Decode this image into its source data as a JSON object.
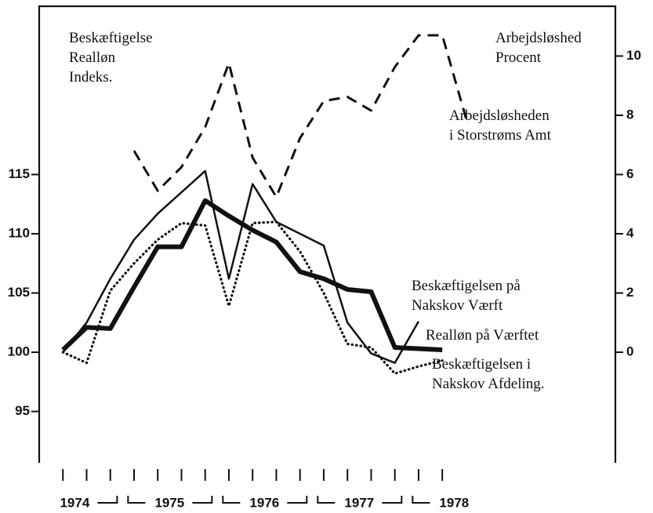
{
  "chart_data": {
    "type": "line",
    "y_label": [
      "Beskæftigelse",
      "Realløn",
      "Indeks."
    ],
    "y2_label": [
      "Arbejdsløshed",
      "Procent"
    ],
    "xlim": [
      1973.75,
      1979.825
    ],
    "xticks": [
      1974,
      1974.25,
      1974.5,
      1974.75,
      1975,
      1975.25,
      1975.5,
      1975.75,
      1976,
      1976.25,
      1976.5,
      1976.75,
      1977,
      1977.25,
      1977.5,
      1977.75,
      1978
    ],
    "year_labels": [
      1974,
      1975,
      1976,
      1977,
      1978
    ],
    "ylim": [
      90.8,
      129.2
    ],
    "yticks": [
      95,
      100,
      105,
      110,
      115
    ],
    "y2lim": [
      -3.68,
      11.68
    ],
    "y2ticks": [
      0,
      2,
      4,
      6,
      8,
      10
    ],
    "series": [
      {
        "name": [
          "Beskæftigelsen på",
          "Nakskov Værft"
        ],
        "color": "#111111",
        "style": "heavy",
        "x": [
          1974,
          1974.25,
          1974.5,
          1974.75,
          1975,
          1975.25,
          1975.5,
          1975.75,
          1976,
          1976.25,
          1976.5,
          1976.75,
          1977,
          1977.25,
          1977.5,
          1977.75,
          1978
        ],
        "values": [
          100.2,
          102.1,
          102.0,
          105.5,
          108.9,
          108.9,
          112.8,
          111.5,
          110.3,
          109.3,
          106.8,
          106.2,
          105.3,
          105.1,
          100.4,
          100.3,
          100.2
        ]
      },
      {
        "name": [
          "Realløn på Værftet"
        ],
        "color": "#111111",
        "style": "thin",
        "x": [
          1974,
          1974.25,
          1974.5,
          1974.75,
          1975,
          1975.25,
          1975.5,
          1975.75,
          1976,
          1976.25,
          1976.5,
          1976.75,
          1977,
          1977.25,
          1977.5,
          1977.75,
          1978
        ],
        "values": [
          100.0,
          102.5,
          106.2,
          109.5,
          111.7,
          113.5,
          115.3,
          106.2,
          114.2,
          111.0,
          110.0,
          109.0,
          102.5,
          99.9,
          99.1,
          102.6,
          null
        ]
      },
      {
        "name": [
          "Beskæftigelsen i",
          "Nakskov Afdeling."
        ],
        "color": "#111111",
        "style": "dotted",
        "x": [
          1974,
          1974.25,
          1974.5,
          1974.75,
          1975,
          1975.25,
          1975.5,
          1975.75,
          1976,
          1976.25,
          1976.5,
          1976.75,
          1977,
          1977.25,
          1977.5,
          1977.75,
          1978
        ],
        "values": [
          100.0,
          99.1,
          105.2,
          107.5,
          109.5,
          110.9,
          110.7,
          103.9,
          110.9,
          111.0,
          108.5,
          105.0,
          100.7,
          100.4,
          98.2,
          98.8,
          99.3
        ]
      },
      {
        "name": [
          "Arbejdsløsheden",
          "i Storstrøms Amt"
        ],
        "color": "#111111",
        "style": "dashed",
        "axis": "y2",
        "x": [
          1974.75,
          1975,
          1975.25,
          1975.5,
          1975.75,
          1976,
          1976.25,
          1976.5,
          1976.75,
          1977,
          1977.25,
          1977.5,
          1977.75,
          1978,
          1978.25
        ],
        "values": [
          6.8,
          5.45,
          6.25,
          7.6,
          9.76,
          6.57,
          5.24,
          7.23,
          8.48,
          8.62,
          8.16,
          9.63,
          10.7,
          10.7,
          7.9
        ]
      }
    ]
  }
}
